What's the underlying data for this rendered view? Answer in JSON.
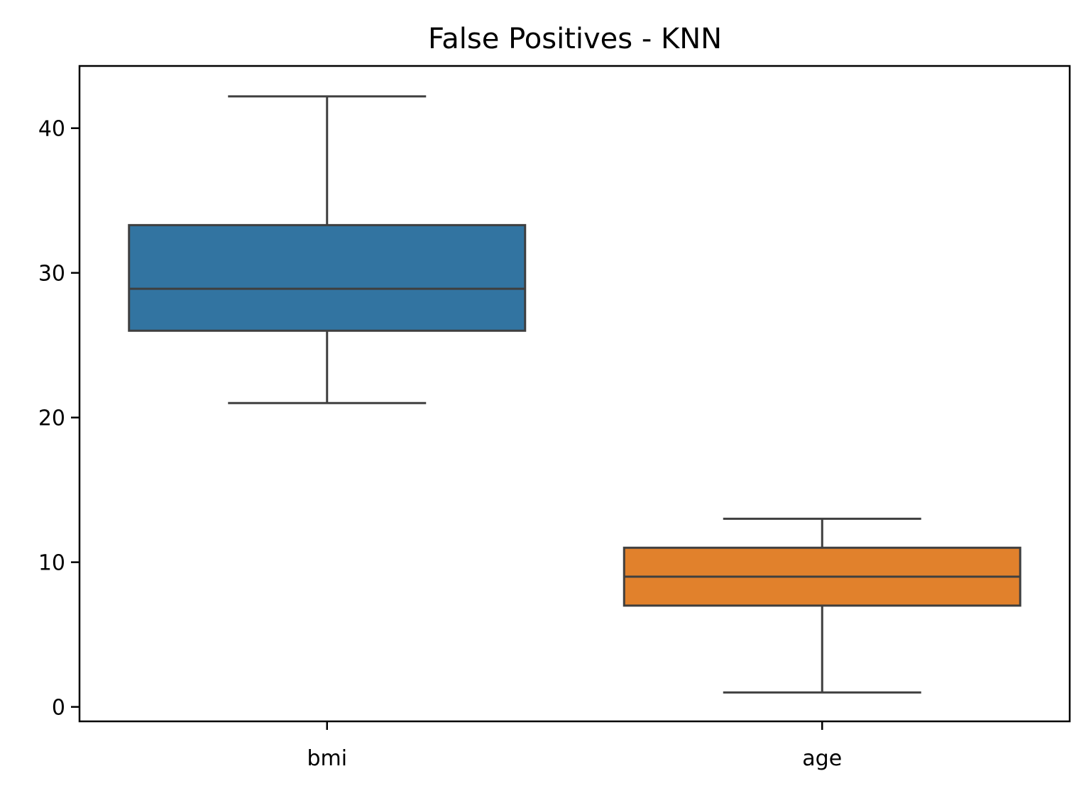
{
  "chart_data": {
    "type": "box",
    "title": "False Positives - KNN",
    "xlabel": "",
    "ylabel": "",
    "ylim": [
      -1.0,
      44.3
    ],
    "yticks": [
      0,
      10,
      20,
      30,
      40
    ],
    "categories": [
      "bmi",
      "age"
    ],
    "boxes": [
      {
        "category": "bmi",
        "whisker_low": 21.0,
        "q1": 26.0,
        "median": 28.9,
        "q3": 33.3,
        "whisker_high": 42.2,
        "color": "#3274a1"
      },
      {
        "category": "age",
        "whisker_low": 1.0,
        "q1": 7.0,
        "median": 9.0,
        "q3": 11.0,
        "whisker_high": 13.0,
        "color": "#e1812c"
      }
    ],
    "grid": false,
    "line_color": "#3f3f3f"
  }
}
